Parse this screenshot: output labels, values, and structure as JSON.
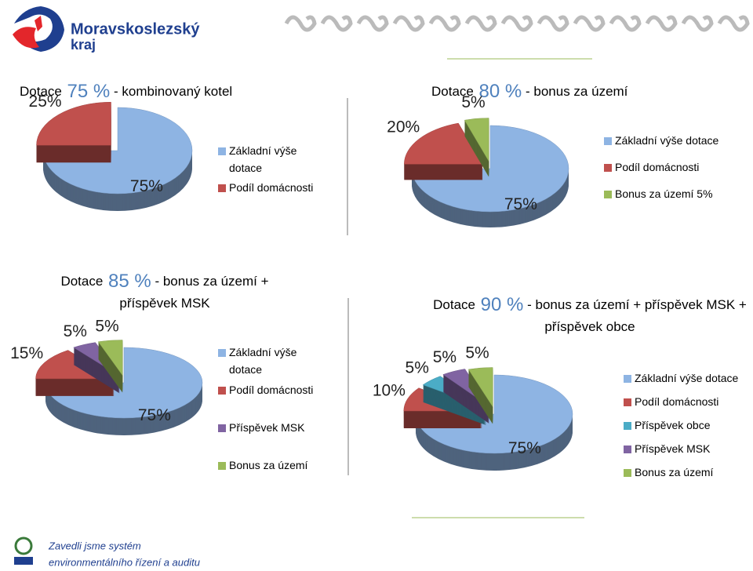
{
  "header": {
    "logo_line1": "Moravskoslezský",
    "logo_line2": "kraj"
  },
  "footer": {
    "line1": "Zavedli jsme systém",
    "line2": "environmentálního řízení a auditu"
  },
  "chart_data": [
    {
      "type": "pie",
      "title": "Dotace 75 % - kombinovaný kotel",
      "categories": [
        "Základní výše dotace",
        "Podíl domácnosti"
      ],
      "values": [
        75,
        25
      ],
      "value_labels": [
        "75%",
        "25%"
      ],
      "colors": [
        "#8eb4e3",
        "#c0504d"
      ]
    },
    {
      "type": "pie",
      "title": "Dotace 80 % - bonus za území",
      "categories": [
        "Základní výše dotace",
        "Podíl domácnosti",
        "Bonus za území 5%"
      ],
      "values": [
        75,
        20,
        5
      ],
      "value_labels": [
        "75%",
        "20%",
        "5%"
      ],
      "colors": [
        "#8eb4e3",
        "#c0504d",
        "#9bbb59"
      ]
    },
    {
      "type": "pie",
      "title": "Dotace 85 % - bonus za území + příspěvek MSK",
      "categories": [
        "Základní výše dotace",
        "Podíl domácnosti",
        "Příspěvek MSK",
        "Bonus za území"
      ],
      "values": [
        75,
        15,
        5,
        5
      ],
      "value_labels": [
        "75%",
        "15%",
        "5%",
        "5%"
      ],
      "colors": [
        "#8eb4e3",
        "#c0504d",
        "#8064a2",
        "#9bbb59"
      ]
    },
    {
      "type": "pie",
      "title": "Dotace 90 % - bonus za území + příspěvek MSK + příspěvek obce",
      "categories": [
        "Základní výše dotace",
        "Podíl domácnosti",
        "Příspěvek obce",
        "Příspěvek MSK",
        "Bonus za území"
      ],
      "values": [
        75,
        10,
        5,
        5,
        5
      ],
      "value_labels": [
        "75%",
        "10%",
        "5%",
        "5%",
        "5%"
      ],
      "colors": [
        "#8eb4e3",
        "#c0504d",
        "#4bacc6",
        "#8064a2",
        "#9bbb59"
      ]
    }
  ]
}
